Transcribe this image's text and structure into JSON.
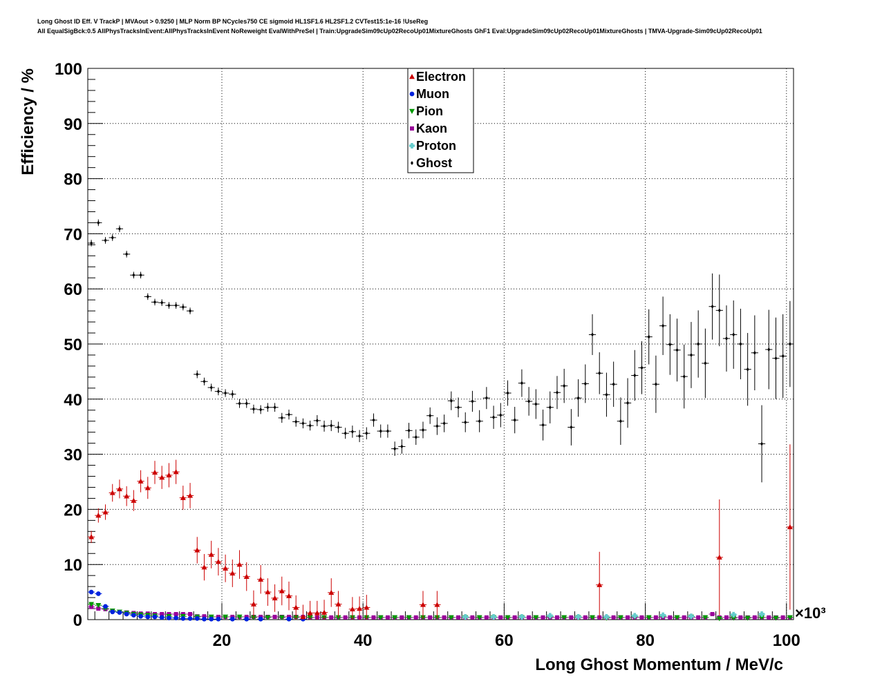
{
  "header": {
    "title_line1": "Long Ghost ID Eff. V TrackP | MVAout > 0.9250 | MLP Norm BP NCycles750 CE sigmoid HL1SF1.6 HL2SF1.2 CVTest15:1e-16 !UseReg",
    "title_line2": "All EqualSigBck:0.5 AllPhysTracksInEvent:AllPhysTracksInEvent NoReweight EvalWithPreSel | Train:UpgradeSim09cUp02RecoUp01MixtureGhosts GhF1 Eval:UpgradeSim09cUp02RecoUp01MixtureGhosts | TMVA-Upgrade-Sim09cUp02RecoUp01"
  },
  "colors": {
    "Electron": "#cc0000",
    "Muon": "#0022dd",
    "Pion": "#009900",
    "Kaon": "#990099",
    "Proton": "#66cccc",
    "Ghost": "#000000"
  },
  "chart_data": {
    "type": "scatter",
    "xlabel": "Long Ghost Momentum / MeV/c",
    "ylabel": "Efficiency / %",
    "x_multiplier": "×10³",
    "xlim": [
      1,
      101
    ],
    "ylim": [
      0,
      100
    ],
    "xticks": [
      20,
      40,
      60,
      80,
      100
    ],
    "yticks": [
      0,
      10,
      20,
      30,
      40,
      50,
      60,
      70,
      80,
      90,
      100
    ],
    "grid": true,
    "legend_position": "top-center",
    "legend": [
      "Electron",
      "Muon",
      "Pion",
      "Kaon",
      "Proton",
      "Ghost"
    ],
    "series": [
      {
        "name": "Ghost",
        "marker": "diamond",
        "x": [
          1.5,
          2.5,
          3.5,
          4.5,
          5.5,
          6.5,
          7.5,
          8.5,
          9.5,
          10.5,
          11.5,
          12.5,
          13.5,
          14.5,
          15.5,
          16.5,
          17.5,
          18.5,
          19.5,
          20.5,
          21.5,
          22.5,
          23.5,
          24.5,
          25.5,
          26.5,
          27.5,
          28.5,
          29.5,
          30.5,
          31.5,
          32.5,
          33.5,
          34.5,
          35.5,
          36.5,
          37.5,
          38.5,
          39.5,
          40.5,
          41.5,
          42.5,
          43.5,
          44.5,
          45.5,
          46.5,
          47.5,
          48.5,
          49.5,
          50.5,
          51.5,
          52.5,
          53.5,
          54.5,
          55.5,
          56.5,
          57.5,
          58.5,
          59.5,
          60.5,
          61.5,
          62.5,
          63.5,
          64.5,
          65.5,
          66.5,
          67.5,
          68.5,
          69.5,
          70.5,
          71.5,
          72.5,
          73.5,
          74.5,
          75.5,
          76.5,
          77.5,
          78.5,
          79.5,
          80.5,
          81.5,
          82.5,
          83.5,
          84.5,
          85.5,
          86.5,
          87.5,
          88.5,
          89.5,
          90.5,
          91.5,
          92.5,
          93.5,
          94.5,
          95.5,
          96.5,
          97.5,
          98.5,
          99.5,
          100.5
        ],
        "y": [
          68.3,
          72.0,
          68.8,
          69.3,
          70.9,
          66.3,
          62.5,
          62.5,
          58.6,
          57.6,
          57.5,
          57.0,
          57.0,
          56.7,
          56.0,
          44.5,
          43.2,
          42.1,
          41.4,
          41.1,
          40.9,
          39.2,
          39.2,
          38.2,
          38.1,
          38.5,
          38.5,
          36.6,
          37.2,
          35.9,
          35.6,
          35.2,
          36.1,
          35.1,
          35.2,
          34.9,
          33.8,
          34.1,
          33.3,
          33.8,
          36.2,
          34.2,
          34.2,
          31.0,
          31.4,
          34.3,
          33.1,
          34.4,
          37.0,
          35.1,
          35.6,
          39.7,
          38.5,
          35.8,
          39.6,
          36.0,
          40.2,
          36.7,
          37.1,
          41.1,
          36.2,
          42.9,
          39.6,
          39.1,
          35.3,
          38.5,
          41.2,
          42.4,
          34.9,
          40.2,
          42.8,
          51.7,
          44.7,
          40.8,
          42.7,
          36.0,
          39.3,
          44.3,
          45.7,
          51.3,
          42.7,
          53.3,
          49.9,
          48.9,
          44.1,
          48.0,
          50.0,
          46.5,
          56.8,
          56.1,
          51.0,
          51.7,
          50.0,
          45.4,
          48.4,
          31.9,
          49.0,
          47.4,
          47.8,
          50.0
        ],
        "err": [
          0.6,
          0.6,
          0.6,
          0.6,
          0.6,
          0.6,
          0.6,
          0.6,
          0.6,
          0.6,
          0.6,
          0.6,
          0.6,
          0.6,
          0.6,
          0.7,
          0.7,
          0.7,
          0.7,
          0.7,
          0.7,
          0.8,
          0.8,
          0.8,
          0.8,
          0.8,
          0.8,
          0.9,
          0.9,
          0.9,
          0.9,
          0.9,
          1.0,
          1.0,
          1.0,
          1.0,
          1.0,
          1.1,
          1.1,
          1.1,
          1.2,
          1.2,
          1.2,
          1.3,
          1.3,
          1.4,
          1.4,
          1.5,
          1.5,
          1.6,
          1.6,
          1.7,
          1.8,
          1.8,
          1.9,
          2.0,
          2.0,
          2.1,
          2.2,
          2.3,
          2.4,
          2.5,
          2.6,
          2.7,
          2.8,
          2.9,
          3.0,
          3.1,
          3.3,
          3.4,
          3.5,
          3.7,
          3.8,
          4.0,
          4.1,
          4.3,
          4.5,
          4.6,
          4.8,
          5.0,
          5.2,
          5.3,
          5.5,
          5.7,
          5.8,
          6.0,
          6.1,
          6.3,
          6.0,
          6.5,
          6.0,
          6.2,
          6.4,
          6.6,
          6.8,
          7.0,
          7.2,
          7.4,
          7.6,
          7.8
        ]
      },
      {
        "name": "Electron",
        "marker": "triangle-up",
        "x": [
          1.5,
          2.5,
          3.5,
          4.5,
          5.5,
          6.5,
          7.5,
          8.5,
          9.5,
          10.5,
          11.5,
          12.5,
          13.5,
          14.5,
          15.5,
          16.5,
          17.5,
          18.5,
          19.5,
          20.5,
          21.5,
          22.5,
          23.5,
          24.5,
          25.5,
          26.5,
          27.5,
          28.5,
          29.5,
          30.5,
          31.5,
          32.5,
          33.5,
          34.5,
          35.5,
          36.5,
          38.5,
          39.5,
          40.5,
          48.5,
          50.5,
          73.5,
          90.5,
          100.5
        ],
        "y": [
          15.0,
          18.9,
          19.5,
          23.0,
          23.7,
          22.4,
          21.6,
          25.1,
          23.9,
          26.7,
          25.8,
          26.2,
          26.8,
          22.1,
          22.5,
          12.6,
          9.5,
          11.8,
          10.5,
          9.3,
          8.4,
          10.0,
          7.8,
          2.8,
          7.3,
          5.0,
          3.9,
          5.2,
          4.3,
          2.2,
          0.5,
          1.2,
          1.2,
          1.3,
          4.9,
          2.8,
          1.9,
          2.0,
          2.2,
          2.7,
          2.7,
          6.3,
          11.3,
          16.8
        ],
        "err": [
          1.1,
          1.3,
          1.4,
          1.6,
          1.7,
          1.8,
          1.9,
          2.0,
          2.0,
          2.1,
          2.1,
          2.2,
          2.2,
          2.2,
          2.3,
          2.4,
          2.4,
          2.5,
          2.5,
          2.5,
          2.5,
          2.6,
          2.6,
          2.5,
          2.6,
          2.5,
          2.5,
          2.6,
          2.6,
          2.2,
          2.2,
          2.2,
          2.2,
          2.3,
          2.6,
          2.4,
          2.2,
          2.2,
          2.3,
          2.5,
          2.5,
          6.0,
          10.5,
          15.0
        ]
      },
      {
        "name": "Muon",
        "marker": "circle",
        "x": [
          1.5,
          2.5,
          3.5,
          4.5,
          5.5,
          6.5,
          7.5,
          8.5,
          9.5,
          10.5,
          11.5,
          12.5,
          13.5,
          14.5,
          15.5,
          16.5,
          17.5,
          18.5,
          19.5,
          21.5,
          23.5,
          25.5,
          29.5,
          31.5
        ],
        "y": [
          5.0,
          4.7,
          2.4,
          1.4,
          1.3,
          1.0,
          0.8,
          0.6,
          0.5,
          0.5,
          0.4,
          0.3,
          0.3,
          0.2,
          0.2,
          0.2,
          0.1,
          0.1,
          0.1,
          0.1,
          0.1,
          0.1,
          0.1,
          0.1
        ],
        "err": [
          0.3,
          0.3,
          0.2,
          0.2,
          0.2,
          0.2,
          0.2,
          0.2,
          0.2,
          0.2,
          0.2,
          0.2,
          0.2,
          0.2,
          0.2,
          0.2,
          0.2,
          0.2,
          0.2,
          0.2,
          0.2,
          0.2,
          0.2,
          0.2
        ]
      },
      {
        "name": "Pion",
        "marker": "triangle-down",
        "x": [
          1.5,
          2.5,
          3.5,
          4.5,
          5.5,
          6.5,
          7.5,
          8.5,
          9.5,
          10.5,
          12.5,
          14.5,
          16.5,
          18.5,
          20.5,
          22.5,
          24.5,
          26.5,
          28.5,
          30.5,
          32.5,
          34.5,
          36.5,
          38.5,
          40.5,
          42.5,
          44.5,
          46.5,
          48.5,
          50.5,
          52.5,
          54.5,
          56.5,
          58.5,
          60.5,
          62.5,
          64.5,
          66.5,
          68.5,
          70.5,
          72.5,
          74.5,
          76.5,
          78.5,
          80.5,
          82.5,
          84.5,
          86.5,
          88.5,
          90.5,
          92.5,
          94.5,
          96.5,
          98.5,
          100.5
        ],
        "y": [
          2.8,
          2.6,
          2.0,
          1.6,
          1.4,
          1.2,
          1.0,
          0.9,
          0.8,
          0.7,
          0.6,
          0.6,
          0.5,
          0.5,
          0.5,
          0.5,
          0.4,
          0.4,
          0.4,
          0.4,
          0.4,
          0.4,
          0.4,
          0.4,
          0.4,
          0.4,
          0.4,
          0.4,
          0.4,
          0.4,
          0.4,
          0.4,
          0.4,
          0.4,
          0.4,
          0.4,
          0.4,
          0.5,
          0.4,
          0.4,
          0.4,
          0.3,
          0.4,
          0.5,
          0.4,
          0.6,
          0.4,
          0.5,
          0.4,
          0.2,
          0.3,
          0.3,
          0.4,
          0.3,
          0.4
        ],
        "err": [
          0.2,
          0.2,
          0.2,
          0.2,
          0.2,
          0.2,
          0.2,
          0.2,
          0.2,
          0.2,
          0.2,
          0.2,
          0.2,
          0.2,
          0.2,
          0.2,
          0.2,
          0.2,
          0.2,
          0.2,
          0.2,
          0.2,
          0.2,
          0.2,
          0.2,
          0.2,
          0.2,
          0.2,
          0.2,
          0.2,
          0.2,
          0.2,
          0.2,
          0.2,
          0.2,
          0.2,
          0.2,
          0.2,
          0.2,
          0.2,
          0.2,
          0.2,
          0.2,
          0.2,
          0.2,
          0.2,
          0.2,
          0.2,
          0.2,
          0.2,
          0.2,
          0.2,
          0.2,
          0.2,
          0.2
        ]
      },
      {
        "name": "Kaon",
        "marker": "square",
        "x": [
          1.5,
          2.5,
          3.5,
          4.5,
          5.5,
          6.5,
          7.5,
          8.5,
          9.5,
          10.5,
          11.5,
          12.5,
          13.5,
          14.5,
          15.5,
          16.5,
          17.5,
          18.5,
          19.5,
          20.5,
          21.5,
          22.5,
          23.5,
          24.5,
          25.5,
          26.5,
          27.5,
          28.5,
          29.5,
          30.5,
          31.5,
          32.5,
          33.5,
          34.5,
          35.5,
          36.5,
          37.5,
          38.5,
          39.5,
          40.5,
          41.5,
          42.5,
          43.5,
          44.5,
          45.5,
          46.5,
          47.5,
          48.5,
          49.5,
          50.5,
          51.5,
          52.5,
          53.5,
          54.5,
          55.5,
          56.5,
          57.5,
          58.5,
          59.5,
          60.5,
          61.5,
          62.5,
          63.5,
          64.5,
          65.5,
          66.5,
          67.5,
          68.5,
          69.5,
          70.5,
          71.5,
          72.5,
          73.5,
          74.5,
          75.5,
          76.5,
          77.5,
          78.5,
          79.5,
          80.5,
          81.5,
          82.5,
          83.5,
          84.5,
          85.5,
          86.5,
          87.5,
          88.5,
          89.5,
          90.5,
          91.5,
          92.5,
          93.5,
          94.5,
          95.5,
          96.5,
          97.5,
          98.5,
          99.5,
          100.5
        ],
        "y": [
          2.3,
          2.0,
          1.9,
          1.6,
          1.4,
          1.3,
          1.2,
          1.1,
          1.1,
          1.0,
          1.0,
          1.0,
          1.0,
          1.0,
          1.0,
          0.6,
          0.6,
          0.5,
          0.5,
          0.5,
          0.5,
          0.5,
          0.5,
          0.5,
          0.5,
          0.5,
          0.5,
          0.5,
          0.5,
          0.5,
          0.5,
          0.4,
          0.4,
          0.4,
          0.4,
          0.4,
          0.4,
          0.4,
          0.4,
          0.4,
          0.4,
          0.4,
          0.4,
          0.4,
          0.4,
          0.4,
          0.4,
          0.4,
          0.4,
          0.4,
          0.4,
          0.4,
          0.4,
          0.4,
          0.4,
          0.4,
          0.4,
          0.4,
          0.4,
          0.4,
          0.4,
          0.4,
          0.4,
          0.4,
          0.4,
          0.4,
          0.4,
          0.4,
          0.4,
          0.4,
          0.4,
          0.4,
          0.4,
          0.4,
          0.4,
          0.4,
          0.4,
          0.4,
          0.4,
          0.4,
          0.4,
          0.4,
          0.4,
          0.4,
          0.4,
          0.4,
          0.4,
          0.4,
          1.0,
          0.4,
          0.4,
          0.4,
          0.4,
          0.4,
          0.4,
          0.4,
          0.4,
          0.4,
          0.4,
          0.4
        ],
        "err": [
          0.2,
          0.2,
          0.2,
          0.2,
          0.2,
          0.2,
          0.2,
          0.2,
          0.2,
          0.2,
          0.2,
          0.2,
          0.2,
          0.2,
          0.2,
          0.2,
          0.2,
          0.2,
          0.2,
          0.2,
          0.2,
          0.2,
          0.2,
          0.2,
          0.2,
          0.2,
          0.2,
          0.2,
          0.2,
          0.2,
          0.2,
          0.2,
          0.2,
          0.2,
          0.2,
          0.2,
          0.2,
          0.2,
          0.2,
          0.2,
          0.2,
          0.2,
          0.2,
          0.2,
          0.2,
          0.2,
          0.2,
          0.2,
          0.2,
          0.2,
          0.2,
          0.2,
          0.2,
          0.2,
          0.2,
          0.2,
          0.2,
          0.2,
          0.2,
          0.2,
          0.2,
          0.2,
          0.2,
          0.2,
          0.2,
          0.2,
          0.2,
          0.2,
          0.2,
          0.2,
          0.2,
          0.2,
          0.2,
          0.2,
          0.2,
          0.2,
          0.2,
          0.2,
          0.2,
          0.2,
          0.2,
          0.2,
          0.2,
          0.2,
          0.2,
          0.2,
          0.2,
          0.2,
          0.3,
          0.2,
          0.2,
          0.2,
          0.2,
          0.2,
          0.2,
          0.2,
          0.2,
          0.2,
          0.2,
          0.2
        ]
      },
      {
        "name": "Proton",
        "marker": "cross",
        "x": [
          54.5,
          58.5,
          62.5,
          66.5,
          70.5,
          74.5,
          78.5,
          82.5,
          86.5,
          92.5,
          96.5
        ],
        "y": [
          0.5,
          0.5,
          0.5,
          0.7,
          0.5,
          0.5,
          0.7,
          0.8,
          0.6,
          0.9,
          1.0
        ],
        "err": [
          0.3,
          0.3,
          0.3,
          0.3,
          0.3,
          0.3,
          0.3,
          0.3,
          0.3,
          0.3,
          0.3
        ]
      }
    ]
  }
}
